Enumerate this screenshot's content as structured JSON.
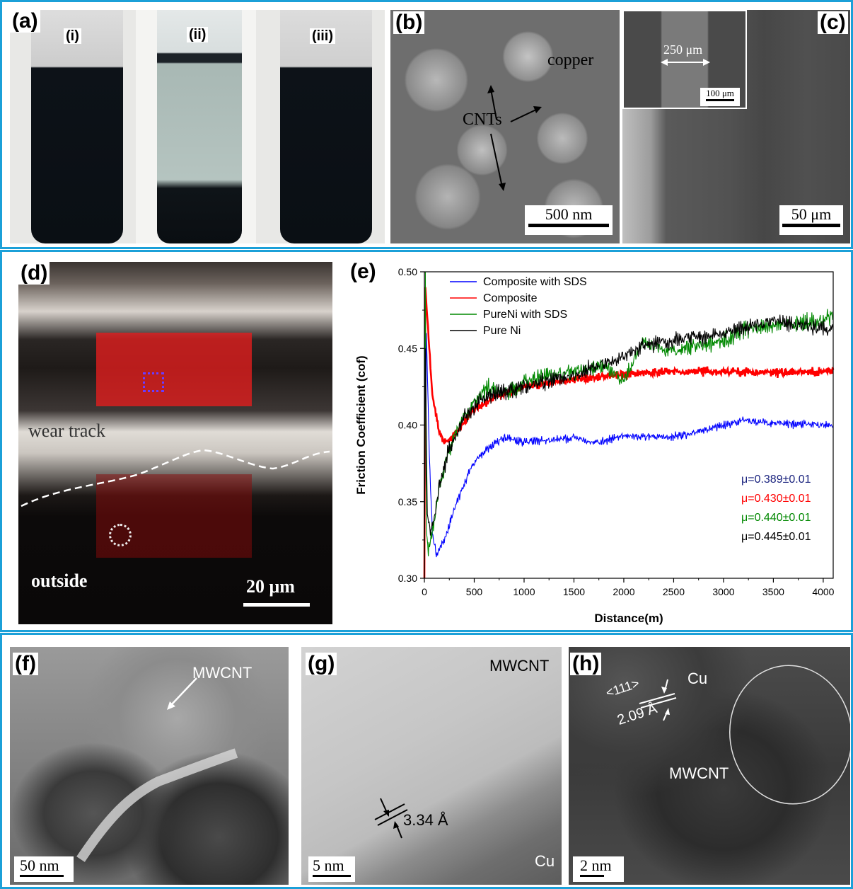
{
  "panels": {
    "a": {
      "label": "(a)",
      "sub": [
        "(i)",
        "(ii)",
        "(iii)"
      ]
    },
    "b": {
      "label": "(b)",
      "copper": "copper",
      "cnts": "CNTs",
      "scale": "500 nm"
    },
    "c": {
      "label": "(c)",
      "width": "250 μm",
      "inset_scale": "100 μm",
      "scale": "50 μm"
    },
    "d": {
      "label": "(d)",
      "wear_track": "wear track",
      "outside": "outside",
      "scale": "20 μm"
    },
    "e": {
      "label": "(e)"
    },
    "f": {
      "label": "(f)",
      "mwcnt": "MWCNT",
      "scale": "50 nm"
    },
    "g": {
      "label": "(g)",
      "mwcnt": "MWCNT",
      "spacing": "3.34 Å",
      "cu": "Cu",
      "scale": "5 nm"
    },
    "h": {
      "label": "(h)",
      "plane": "<111>",
      "spacing": "2.09 Å",
      "cu": "Cu",
      "mwcnt": "MWCNT",
      "scale": "2 nm"
    }
  },
  "chart_data": {
    "type": "line",
    "xlabel": "Distance(m)",
    "ylabel": "Friction Coefficient (cof)",
    "xlim": [
      0,
      4100
    ],
    "ylim": [
      0.3,
      0.5
    ],
    "x_ticks": [
      "0",
      "500",
      "1000",
      "1500",
      "2000",
      "2500",
      "3000",
      "3500",
      "4000"
    ],
    "y_ticks": [
      "0.30",
      "0.35",
      "0.40",
      "0.45",
      "0.50"
    ],
    "legend_position": "top-left",
    "series": [
      {
        "name": "Composite with SDS",
        "color": "#0000ff",
        "x": [
          0,
          20,
          50,
          80,
          120,
          200,
          300,
          450,
          600,
          800,
          1000,
          1200,
          1500,
          1700,
          2000,
          2500,
          3000,
          3200,
          3500,
          4000,
          4100
        ],
        "y": [
          0.3,
          0.46,
          0.38,
          0.33,
          0.315,
          0.325,
          0.345,
          0.37,
          0.383,
          0.392,
          0.389,
          0.39,
          0.392,
          0.388,
          0.393,
          0.392,
          0.4,
          0.403,
          0.401,
          0.4,
          0.398
        ]
      },
      {
        "name": "Composite",
        "color": "#ff0000",
        "x": [
          0,
          10,
          30,
          80,
          150,
          200,
          250,
          350,
          500,
          700,
          1000,
          1300,
          1500,
          2000,
          2500,
          3000,
          3500,
          4000,
          4100
        ],
        "y": [
          0.3,
          0.49,
          0.47,
          0.42,
          0.395,
          0.388,
          0.39,
          0.398,
          0.41,
          0.418,
          0.425,
          0.428,
          0.43,
          0.433,
          0.435,
          0.435,
          0.434,
          0.435,
          0.436
        ]
      },
      {
        "name": "PureNi with SDS",
        "color": "#008800",
        "x": [
          0,
          10,
          20,
          40,
          80,
          150,
          250,
          350,
          500,
          650,
          800,
          1000,
          1200,
          1500,
          1800,
          2000,
          2200,
          2400,
          2600,
          3000,
          3200,
          3500,
          4000,
          4100
        ],
        "y": [
          0.3,
          0.5,
          0.33,
          0.32,
          0.33,
          0.36,
          0.385,
          0.4,
          0.415,
          0.425,
          0.42,
          0.428,
          0.432,
          0.435,
          0.438,
          0.43,
          0.455,
          0.448,
          0.45,
          0.455,
          0.462,
          0.465,
          0.468,
          0.472
        ]
      },
      {
        "name": "Pure Ni",
        "color": "#000000",
        "x": [
          0,
          10,
          30,
          60,
          100,
          150,
          250,
          400,
          600,
          800,
          1000,
          1300,
          1500,
          1800,
          2000,
          2200,
          2500,
          2800,
          3000,
          3300,
          3500,
          3800,
          4000,
          4100
        ],
        "y": [
          0.3,
          0.45,
          0.34,
          0.33,
          0.34,
          0.36,
          0.385,
          0.405,
          0.418,
          0.422,
          0.425,
          0.43,
          0.432,
          0.44,
          0.445,
          0.452,
          0.455,
          0.458,
          0.46,
          0.465,
          0.468,
          0.465,
          0.463,
          0.462
        ]
      }
    ],
    "annotations": [
      {
        "text": "μ=0.389±0.01",
        "color": "#1a237e"
      },
      {
        "text": "μ=0.430±0.01",
        "color": "#ff0000"
      },
      {
        "text": "μ=0.440±0.01",
        "color": "#008800"
      },
      {
        "text": "μ=0.445±0.01",
        "color": "#000000"
      }
    ]
  }
}
